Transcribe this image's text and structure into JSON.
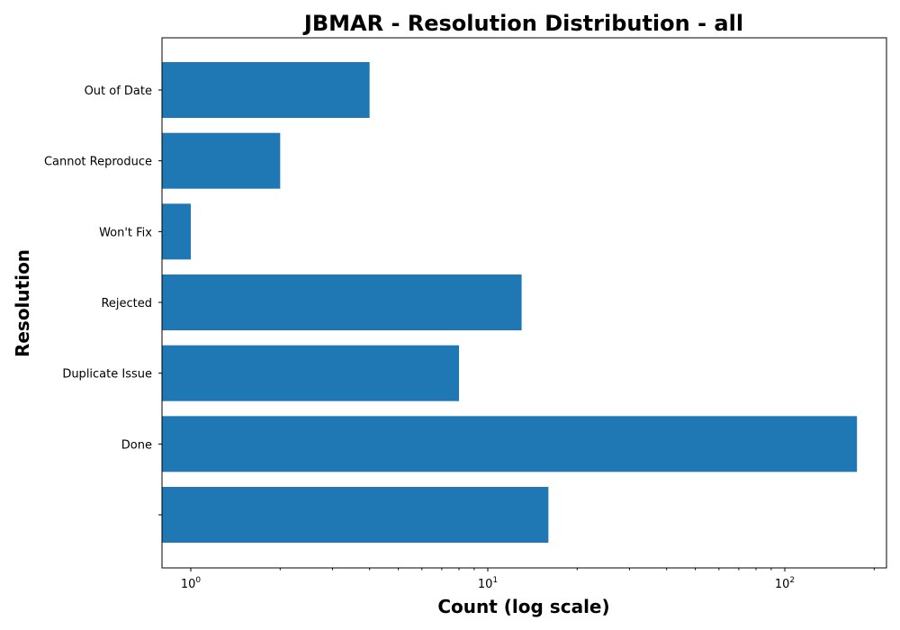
{
  "chart_data": {
    "type": "bar",
    "orientation": "horizontal",
    "title": "JBMAR - Resolution Distribution - all",
    "xlabel": "Count (log scale)",
    "ylabel": "Resolution",
    "xscale": "log",
    "xlim": [
      0.8,
      220
    ],
    "categories": [
      "",
      "Done",
      "Duplicate Issue",
      "Rejected",
      "Won't Fix",
      "Cannot Reproduce",
      "Out of Date"
    ],
    "values": [
      16,
      175,
      8,
      13,
      1,
      2,
      4
    ],
    "x_major_ticks": [
      {
        "value": 1,
        "base": "10",
        "exp": "0"
      },
      {
        "value": 10,
        "base": "10",
        "exp": "1"
      },
      {
        "value": 100,
        "base": "10",
        "exp": "2"
      }
    ],
    "x_minor_ticks": [
      2,
      3,
      4,
      5,
      6,
      7,
      8,
      9,
      20,
      30,
      40,
      50,
      60,
      70,
      80,
      90,
      200
    ],
    "bar_color": "#1f77b4",
    "grid": false,
    "legend": "none"
  }
}
